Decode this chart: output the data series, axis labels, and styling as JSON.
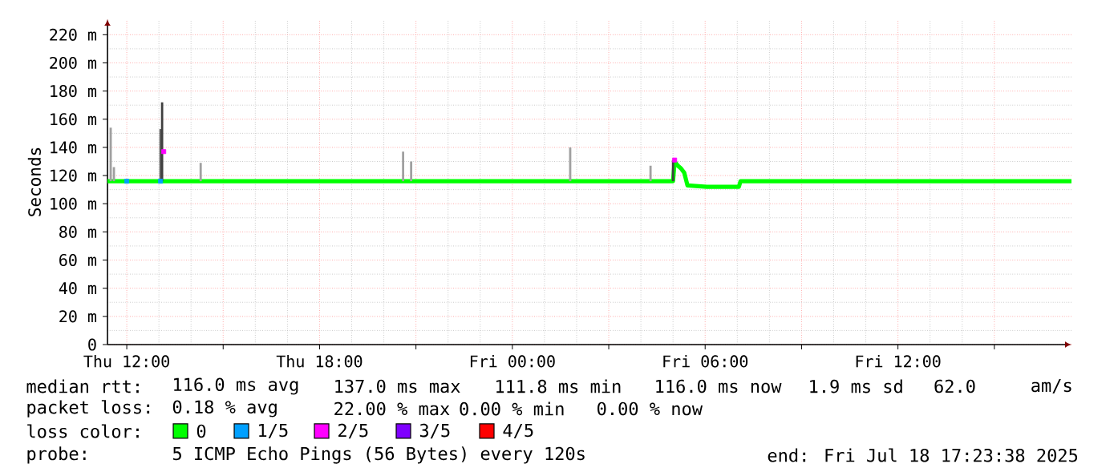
{
  "chart_data": {
    "type": "line",
    "ylabel": "Seconds",
    "xlim": [
      "2025-07-17T11:24",
      "2025-07-18T17:24"
    ],
    "ylim": [
      0,
      231
    ],
    "xticks": [
      {
        "value": "2025-07-17T12:00",
        "label": "Thu 12:00"
      },
      {
        "value": "2025-07-17T15:00",
        "label": null
      },
      {
        "value": "2025-07-17T18:00",
        "label": "Thu 18:00"
      },
      {
        "value": "2025-07-17T21:00",
        "label": null
      },
      {
        "value": "2025-07-18T00:00",
        "label": "Fri 00:00"
      },
      {
        "value": "2025-07-18T03:00",
        "label": null
      },
      {
        "value": "2025-07-18T06:00",
        "label": "Fri 06:00"
      },
      {
        "value": "2025-07-18T09:00",
        "label": null
      },
      {
        "value": "2025-07-18T12:00",
        "label": "Fri 12:00"
      },
      {
        "value": "2025-07-18T15:00",
        "label": null
      }
    ],
    "yticks": [
      0,
      {
        "value": 20,
        "label": "20 m"
      },
      {
        "value": 40,
        "label": "40 m"
      },
      {
        "value": 60,
        "label": "60 m"
      },
      {
        "value": 80,
        "label": "80 m"
      },
      {
        "value": 100,
        "label": "100 m"
      },
      {
        "value": 120,
        "label": "120 m"
      },
      {
        "value": 140,
        "label": "140 m"
      },
      {
        "value": 160,
        "label": "160 m"
      },
      {
        "value": 180,
        "label": "180 m"
      },
      {
        "value": 200,
        "label": "200 m"
      },
      {
        "value": 220,
        "label": "220 m"
      }
    ],
    "grid": true,
    "legend": "bottom",
    "legend_title": "loss color:",
    "annotations": [
      "median rtt:",
      "116.0 ms avg",
      "137.0 ms max",
      "111.8 ms min",
      "116.0 ms now",
      "1.9 ms sd",
      "62.0",
      "am/s",
      "packet loss:",
      "0.18 % avg",
      "22.00 % max",
      "0.00 % min",
      "0.00 % now",
      "probe:",
      "5 ICMP Echo Pings (56 Bytes) every 120s",
      "end: Fri Jul 18 17:23:38 2025"
    ],
    "series": [
      {
        "type": "bar",
        "colors": [
          "#a0a0a0",
          "#a0a0a0",
          "#606060",
          "#404040",
          "#a0a0a0",
          "#a0a0a0",
          "#a0a0a0",
          "#a0a0a0",
          "#a0a0a0",
          "#404040"
        ],
        "x": [
          "2025-07-17T11:30",
          "2025-07-17T11:36",
          "2025-07-17T13:03",
          "2025-07-17T13:06",
          "2025-07-17T14:18",
          "2025-07-17T20:36",
          "2025-07-17T20:51",
          "2025-07-18T01:48",
          "2025-07-18T04:18",
          "2025-07-18T05:00"
        ],
        "base": [
          116,
          116,
          116,
          116,
          116,
          116,
          116,
          116,
          116,
          116
        ],
        "values": [
          38,
          10,
          37,
          56,
          13,
          21,
          14,
          24,
          11,
          15
        ]
      },
      {
        "name": "0",
        "color": "#00ff00",
        "x": [
          "2025-07-17T11:24",
          "2025-07-18T05:00",
          "2025-07-18T05:03",
          "2025-07-18T05:09",
          "2025-07-18T05:15",
          "2025-07-18T05:21",
          "2025-07-18T05:27",
          "2025-07-18T06:03",
          "2025-07-18T07:03",
          "2025-07-18T07:06",
          "2025-07-18T17:24"
        ],
        "values": [
          116,
          116,
          130,
          127,
          125,
          122,
          113,
          112,
          112,
          116,
          116
        ]
      },
      {
        "type": "scatter",
        "name": "1/5",
        "color": "#00a0ff",
        "marker": "square",
        "x": [
          "2025-07-17T12:00",
          "2025-07-17T13:03"
        ],
        "values": [
          116,
          116
        ]
      },
      {
        "type": "scatter",
        "name": "2/5",
        "color": "#ff00ff",
        "marker": "square",
        "x": [
          "2025-07-17T13:09",
          "2025-07-18T05:03"
        ],
        "values": [
          137,
          131
        ]
      },
      {
        "type": "scatter",
        "name": "3/5",
        "color": "#7f00ff",
        "marker": "square"
      },
      {
        "type": "scatter",
        "name": "4/5",
        "color": "#ff0000",
        "marker": "square"
      }
    ]
  }
}
